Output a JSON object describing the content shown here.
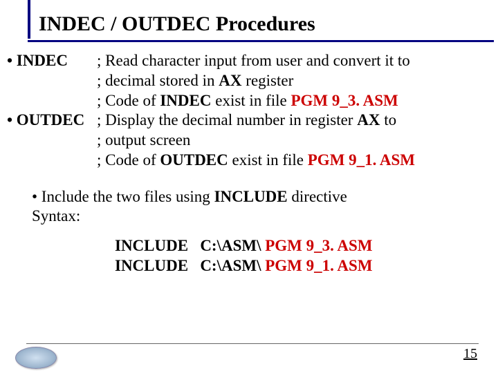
{
  "title": "INDEC / OUTDEC Procedures",
  "items": [
    {
      "label": "• INDEC",
      "lines": [
        {
          "pre": "; Read character input from user and convert it to"
        },
        {
          "pre": "; decimal stored in ",
          "bold1": "AX",
          "post1": " register"
        },
        {
          "pre": "; Code of ",
          "bold1": "INDEC",
          "post1": " exist in file ",
          "red1": "PGM 9_3. ASM"
        }
      ]
    },
    {
      "label": "• OUTDEC",
      "lines": [
        {
          "pre": " ; Display the decimal number in register ",
          "bold1": "AX",
          "post1": " to"
        },
        {
          "pre": " ; output screen"
        },
        {
          "pre": " ; Code of ",
          "bold1": "OUTDEC",
          "post1": " exist in file ",
          "red1": "PGM 9_1. ASM"
        }
      ]
    }
  ],
  "include_note": {
    "line1_pre": "• Include the two files using ",
    "line1_bold": "INCLUDE",
    "line1_post": " directive",
    "line2": "Syntax:"
  },
  "directives": [
    {
      "kw": "INCLUDE   C:\\ASM\\ ",
      "file": "PGM 9_3. ASM"
    },
    {
      "kw": "INCLUDE   C:\\ASM\\ ",
      "file": "PGM 9_1. ASM"
    }
  ],
  "page_number": "15",
  "colors": {
    "accent": "#000080",
    "red": "#cc0000"
  }
}
